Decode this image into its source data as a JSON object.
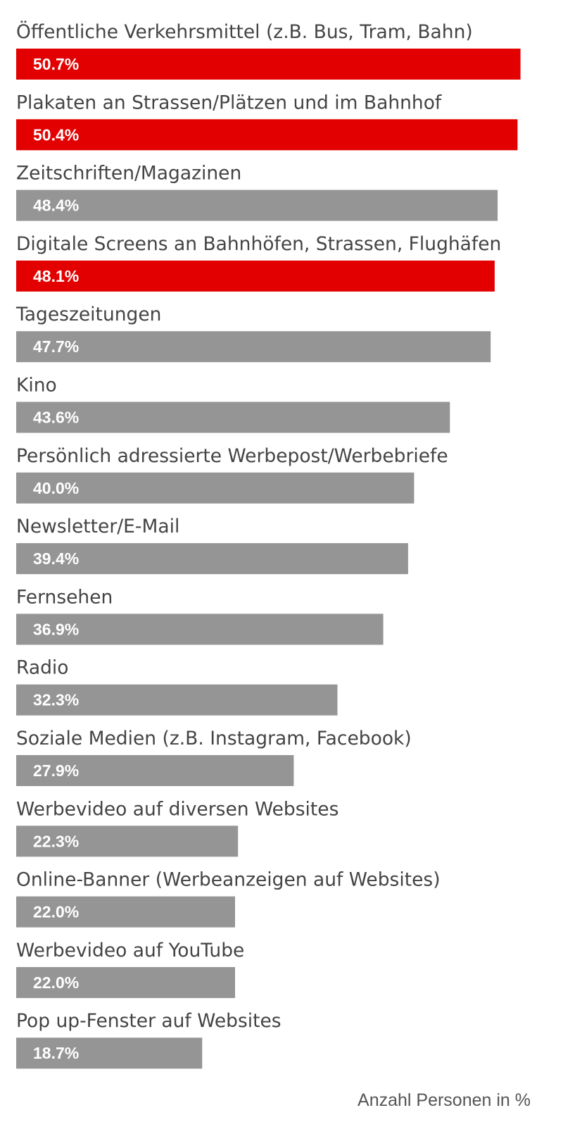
{
  "chart_data": {
    "type": "bar",
    "orientation": "horizontal",
    "value_unit": "%",
    "caption": "Anzahl Personen in %",
    "colors": {
      "highlight": "#e30000",
      "default": "#959595",
      "label_text": "#444444",
      "value_text": "#ffffff"
    },
    "xlim": [
      0,
      52
    ],
    "categories": [
      "Öffentliche Verkehrsmittel (z.B. Bus, Tram, Bahn)",
      "Plakaten an Strassen/Plätzen und im Bahnhof",
      "Zeitschriften/Magazinen",
      "Digitale Screens an Bahnhöfen, Strassen, Flughäfen",
      "Tageszeitungen",
      "Kino",
      "Persönlich adressierte Werbepost/Werbebriefe",
      "Newsletter/E-Mail",
      "Fernsehen",
      "Radio",
      "Soziale Medien (z.B. Instagram, Facebook)",
      "Werbevideo auf diversen Websites",
      "Online-Banner (Werbeanzeigen auf Websites)",
      "Werbevideo auf YouTube",
      "Pop up-Fenster auf Websites"
    ],
    "values": [
      50.7,
      50.4,
      48.4,
      48.1,
      47.7,
      43.6,
      40.0,
      39.4,
      36.9,
      32.3,
      27.9,
      22.3,
      22.0,
      22.0,
      18.7
    ],
    "value_labels": [
      "50.7%",
      "50.4%",
      "48.4%",
      "48.1%",
      "47.7%",
      "43.6%",
      "40.0%",
      "39.4%",
      "36.9%",
      "32.3%",
      "27.9%",
      "22.3%",
      "22.0%",
      "22.0%",
      "18.7%"
    ],
    "highlighted": [
      true,
      true,
      false,
      true,
      false,
      false,
      false,
      false,
      false,
      false,
      false,
      false,
      false,
      false,
      false
    ]
  }
}
